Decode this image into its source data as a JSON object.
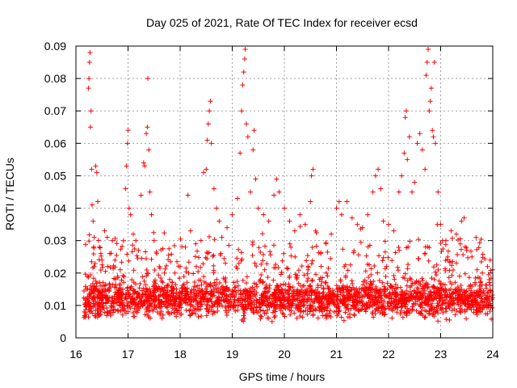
{
  "chart_data": {
    "type": "scatter",
    "title": "Day 025 of 2021, Rate Of TEC Index for receiver ecsd",
    "xlabel": "GPS time / hours",
    "ylabel": "ROTI / TECUs",
    "xlim": [
      16,
      24
    ],
    "ylim": [
      0,
      0.09
    ],
    "x_ticks": [
      "16",
      "17",
      "18",
      "19",
      "20",
      "21",
      "22",
      "23",
      "24"
    ],
    "y_ticks": [
      "0",
      "0.01",
      "0.02",
      "0.03",
      "0.04",
      "0.05",
      "0.06",
      "0.07",
      "0.08",
      "0.09"
    ],
    "grid": true,
    "marker": "+",
    "color": "#ff0000",
    "series": [
      {
        "name": "ROTI",
        "points": [
          [
            16.18,
            0.012
          ],
          [
            16.2,
            0.015
          ],
          [
            16.22,
            0.019
          ],
          [
            16.24,
            0.077
          ],
          [
            16.25,
            0.08
          ],
          [
            16.26,
            0.085
          ],
          [
            16.27,
            0.088
          ],
          [
            16.28,
            0.065
          ],
          [
            16.29,
            0.07
          ],
          [
            16.3,
            0.052
          ],
          [
            16.31,
            0.041
          ],
          [
            16.33,
            0.036
          ],
          [
            16.35,
            0.031
          ],
          [
            16.38,
            0.053
          ],
          [
            16.4,
            0.051
          ],
          [
            16.42,
            0.042
          ],
          [
            16.45,
            0.028
          ],
          [
            16.5,
            0.024
          ],
          [
            16.55,
            0.033
          ],
          [
            16.6,
            0.031
          ],
          [
            16.65,
            0.026
          ],
          [
            16.7,
            0.03
          ],
          [
            16.75,
            0.024
          ],
          [
            16.8,
            0.019
          ],
          [
            16.85,
            0.021
          ],
          [
            16.9,
            0.015
          ],
          [
            16.95,
            0.046
          ],
          [
            16.97,
            0.053
          ],
          [
            16.99,
            0.06
          ],
          [
            17.0,
            0.064
          ],
          [
            17.02,
            0.04
          ],
          [
            17.05,
            0.038
          ],
          [
            17.1,
            0.032
          ],
          [
            17.15,
            0.03
          ],
          [
            17.2,
            0.027
          ],
          [
            17.25,
            0.044
          ],
          [
            17.3,
            0.054
          ],
          [
            17.32,
            0.053
          ],
          [
            17.35,
            0.063
          ],
          [
            17.37,
            0.065
          ],
          [
            17.38,
            0.08
          ],
          [
            17.4,
            0.058
          ],
          [
            17.42,
            0.045
          ],
          [
            17.45,
            0.038
          ],
          [
            17.5,
            0.03
          ],
          [
            17.55,
            0.026
          ],
          [
            17.6,
            0.022
          ],
          [
            17.7,
            0.02
          ],
          [
            17.8,
            0.018
          ],
          [
            17.9,
            0.02
          ],
          [
            18.0,
            0.022
          ],
          [
            18.1,
            0.028
          ],
          [
            18.15,
            0.044
          ],
          [
            18.2,
            0.033
          ],
          [
            18.3,
            0.029
          ],
          [
            18.4,
            0.03
          ],
          [
            18.45,
            0.051
          ],
          [
            18.5,
            0.052
          ],
          [
            18.52,
            0.061
          ],
          [
            18.54,
            0.066
          ],
          [
            18.56,
            0.07
          ],
          [
            18.58,
            0.073
          ],
          [
            18.6,
            0.06
          ],
          [
            18.65,
            0.046
          ],
          [
            18.7,
            0.04
          ],
          [
            18.75,
            0.036
          ],
          [
            18.8,
            0.031
          ],
          [
            18.9,
            0.034
          ],
          [
            19.0,
            0.038
          ],
          [
            19.1,
            0.043
          ],
          [
            19.15,
            0.057
          ],
          [
            19.18,
            0.07
          ],
          [
            19.2,
            0.078
          ],
          [
            19.22,
            0.082
          ],
          [
            19.24,
            0.086
          ],
          [
            19.25,
            0.089
          ],
          [
            19.27,
            0.066
          ],
          [
            19.3,
            0.062
          ],
          [
            19.35,
            0.045
          ],
          [
            19.4,
            0.058
          ],
          [
            19.42,
            0.064
          ],
          [
            19.45,
            0.049
          ],
          [
            19.5,
            0.04
          ],
          [
            19.6,
            0.038
          ],
          [
            19.7,
            0.036
          ],
          [
            19.8,
            0.044
          ],
          [
            19.85,
            0.049
          ],
          [
            19.9,
            0.045
          ],
          [
            20.0,
            0.04
          ],
          [
            20.1,
            0.036
          ],
          [
            20.2,
            0.033
          ],
          [
            20.3,
            0.038
          ],
          [
            20.4,
            0.035
          ],
          [
            20.5,
            0.042
          ],
          [
            20.52,
            0.05
          ],
          [
            20.55,
            0.052
          ],
          [
            20.6,
            0.033
          ],
          [
            20.7,
            0.026
          ],
          [
            20.8,
            0.029
          ],
          [
            20.9,
            0.032
          ],
          [
            21.0,
            0.04
          ],
          [
            21.05,
            0.042
          ],
          [
            21.1,
            0.038
          ],
          [
            21.2,
            0.042
          ],
          [
            21.3,
            0.037
          ],
          [
            21.4,
            0.035
          ],
          [
            21.5,
            0.034
          ],
          [
            21.6,
            0.038
          ],
          [
            21.7,
            0.045
          ],
          [
            21.75,
            0.05
          ],
          [
            21.8,
            0.052
          ],
          [
            21.85,
            0.046
          ],
          [
            21.9,
            0.036
          ],
          [
            22.0,
            0.035
          ],
          [
            22.1,
            0.033
          ],
          [
            22.2,
            0.045
          ],
          [
            22.25,
            0.05
          ],
          [
            22.3,
            0.057
          ],
          [
            22.32,
            0.068
          ],
          [
            22.34,
            0.07
          ],
          [
            22.36,
            0.055
          ],
          [
            22.4,
            0.062
          ],
          [
            22.45,
            0.045
          ],
          [
            22.5,
            0.048
          ],
          [
            22.55,
            0.06
          ],
          [
            22.6,
            0.063
          ],
          [
            22.65,
            0.058
          ],
          [
            22.7,
            0.052
          ],
          [
            22.72,
            0.081
          ],
          [
            22.74,
            0.085
          ],
          [
            22.76,
            0.089
          ],
          [
            22.78,
            0.07
          ],
          [
            22.8,
            0.073
          ],
          [
            22.82,
            0.077
          ],
          [
            22.84,
            0.064
          ],
          [
            22.86,
            0.062
          ],
          [
            22.88,
            0.085
          ],
          [
            22.9,
            0.06
          ],
          [
            22.95,
            0.045
          ],
          [
            23.0,
            0.035
          ],
          [
            23.1,
            0.03
          ],
          [
            23.2,
            0.033
          ],
          [
            23.3,
            0.032
          ],
          [
            23.4,
            0.036
          ],
          [
            23.45,
            0.037
          ],
          [
            23.5,
            0.027
          ],
          [
            23.6,
            0.025
          ],
          [
            23.7,
            0.021
          ],
          [
            23.8,
            0.02
          ],
          [
            23.9,
            0.022
          ],
          [
            23.95,
            0.024
          ],
          [
            24.0,
            0.021
          ]
        ]
      }
    ]
  }
}
